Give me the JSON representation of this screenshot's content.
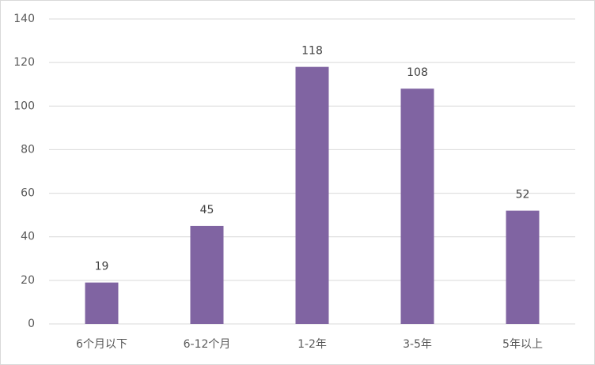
{
  "chart_data": {
    "type": "bar",
    "categories": [
      "6个月以下",
      "6-12个月",
      "1-2年",
      "3-5年",
      "5年以上"
    ],
    "values": [
      19,
      45,
      118,
      108,
      52
    ],
    "color": "#8064a2",
    "ylim": [
      0,
      140
    ],
    "yticks": [
      0,
      20,
      40,
      60,
      80,
      100,
      120,
      140
    ],
    "grid": true,
    "data_labels": true
  }
}
